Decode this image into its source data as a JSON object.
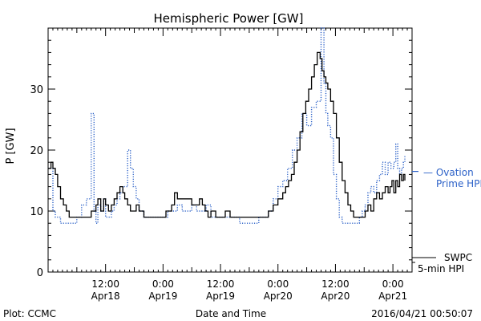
{
  "chart_data": {
    "type": "line",
    "title": "Hemispheric Power [GW]",
    "xlabel": "Date and Time",
    "ylabel": "P [GW]",
    "ylim": [
      0,
      40
    ],
    "xlim": [
      0,
      76
    ],
    "yticks": [
      0,
      10,
      20,
      30
    ],
    "xticks": [
      {
        "x": 12,
        "time": "12:00",
        "date": "Apr18"
      },
      {
        "x": 24,
        "time": "0:00",
        "date": "Apr19"
      },
      {
        "x": 36,
        "time": "12:00",
        "date": "Apr19"
      },
      {
        "x": 48,
        "time": "0:00",
        "date": "Apr20"
      },
      {
        "x": 60,
        "time": "12:00",
        "date": "Apr20"
      },
      {
        "x": 72,
        "time": "0:00",
        "date": "Apr21"
      }
    ],
    "grid": false,
    "series": [
      {
        "name": "SWPC 5-min HPI",
        "color": "#000000",
        "dash": "solid",
        "x": [
          0,
          0.6,
          1.0,
          1.5,
          2.0,
          2.6,
          3.2,
          3.8,
          4.4,
          5.0,
          6.0,
          7.0,
          8.0,
          9.0,
          10.0,
          10.4,
          11.0,
          11.6,
          12.0,
          12.6,
          13.2,
          13.8,
          14.4,
          15.0,
          15.6,
          16.0,
          16.6,
          17.2,
          17.8,
          18.4,
          19.0,
          19.6,
          20.0,
          21.0,
          22.0,
          23.0,
          24.0,
          24.6,
          25.2,
          25.8,
          26.4,
          27.0,
          27.6,
          28.0,
          29.0,
          30.0,
          31.0,
          31.6,
          32.2,
          32.8,
          33.4,
          34.0,
          35.0,
          36.0,
          37.0,
          38.0,
          39.0,
          40.0,
          41.0,
          42.0,
          43.0,
          44.0,
          45.0,
          46.0,
          47.0,
          48.0,
          49.0,
          49.6,
          50.2,
          50.8,
          51.4,
          52.0,
          52.6,
          53.2,
          53.8,
          54.4,
          55.0,
          55.6,
          56.2,
          56.8,
          57.2,
          57.6,
          58.0,
          58.4,
          59.0,
          59.6,
          60.2,
          60.8,
          61.4,
          62.0,
          62.6,
          63.2,
          63.8,
          64.4,
          65.0,
          65.6,
          66.2,
          66.8,
          67.4,
          68.0,
          68.6,
          69.2,
          69.8,
          70.4,
          71.0,
          71.4,
          71.8,
          72.2,
          72.6,
          73.0,
          73.4,
          73.8,
          74.2,
          74.5
        ],
        "y": [
          17,
          18,
          17,
          16,
          14,
          12,
          11,
          10,
          9,
          9,
          9,
          9,
          9,
          10,
          11,
          12,
          10,
          12,
          11,
          10,
          11,
          12,
          13,
          14,
          13,
          12,
          11,
          10,
          10,
          11,
          10,
          10,
          9,
          9,
          9,
          9,
          9,
          10,
          10,
          11,
          13,
          12,
          12,
          12,
          12,
          11,
          11,
          12,
          11,
          10,
          9,
          10,
          9,
          9,
          10,
          9,
          9,
          9,
          9,
          9,
          9,
          9,
          9,
          10,
          11,
          12,
          13,
          14,
          15,
          16,
          18,
          20,
          23,
          26,
          28,
          30,
          32,
          34,
          36,
          35,
          33,
          32,
          31,
          30,
          28,
          26,
          22,
          18,
          15,
          13,
          11,
          10,
          9,
          9,
          9,
          9,
          10,
          11,
          10,
          12,
          13,
          12,
          13,
          14,
          13,
          14,
          15,
          13,
          15,
          14,
          16,
          15,
          16,
          15
        ]
      },
      {
        "name": "Ovation Prime HPI",
        "color": "#2d62c8",
        "dash": "dotted",
        "x": [
          0,
          1.0,
          1.5,
          2.0,
          2.6,
          3.2,
          4.0,
          5.0,
          6.0,
          7.0,
          8.0,
          9.0,
          9.6,
          10.0,
          10.4,
          11.0,
          11.6,
          12.0,
          12.6,
          13.2,
          13.8,
          14.4,
          15.0,
          15.6,
          16.0,
          16.6,
          17.2,
          17.8,
          18.4,
          19.0,
          19.6,
          20.0,
          21.0,
          22.0,
          23.0,
          24.0,
          25.0,
          26.0,
          27.0,
          28.0,
          29.0,
          30.0,
          31.0,
          32.0,
          33.0,
          34.0,
          35.0,
          36.0,
          37.0,
          38.0,
          39.0,
          40.0,
          41.0,
          42.0,
          43.0,
          44.0,
          45.0,
          46.0,
          47.0,
          48.0,
          49.0,
          50.0,
          51.0,
          52.0,
          53.0,
          54.0,
          55.0,
          56.0,
          57.0,
          57.6,
          58.0,
          58.4,
          59.0,
          59.6,
          60.2,
          60.8,
          61.4,
          62.0,
          62.6,
          63.2,
          63.8,
          64.4,
          65.0,
          65.6,
          66.2,
          66.8,
          67.4,
          68.0,
          68.6,
          69.2,
          69.8,
          70.4,
          71.0,
          71.6,
          72.2,
          72.6,
          73.0,
          73.4,
          73.8,
          74.2,
          74.5
        ],
        "y": [
          17,
          10,
          9,
          9,
          8,
          8,
          8,
          8,
          9,
          11,
          12,
          26,
          10,
          8,
          11,
          10,
          12,
          9,
          9,
          10,
          11,
          12,
          13,
          14,
          14,
          20,
          17,
          14,
          12,
          10,
          10,
          9,
          9,
          9,
          9,
          9,
          10,
          10,
          11,
          10,
          10,
          11,
          10,
          10,
          11,
          9,
          9,
          9,
          9,
          9,
          9,
          8,
          8,
          8,
          8,
          9,
          9,
          10,
          12,
          14,
          15,
          17,
          20,
          22,
          26,
          24,
          27,
          28,
          40,
          31,
          26,
          24,
          22,
          16,
          12,
          9,
          8,
          8,
          8,
          8,
          8,
          8,
          9,
          10,
          11,
          13,
          14,
          13,
          15,
          16,
          18,
          16,
          18,
          17,
          18,
          21,
          17,
          16,
          17,
          18,
          19
        ]
      }
    ],
    "legend": [
      {
        "lines": [
          "— Ovation",
          "Prime HPI"
        ],
        "color": "#2d62c8"
      },
      {
        "lines": [
          "SWPC",
          "5-min HPI"
        ],
        "color": "#000000"
      }
    ],
    "footer": {
      "left": "Plot: CCMC",
      "center": "Date and Time",
      "right": "2016/04/21 00:50:07"
    }
  }
}
